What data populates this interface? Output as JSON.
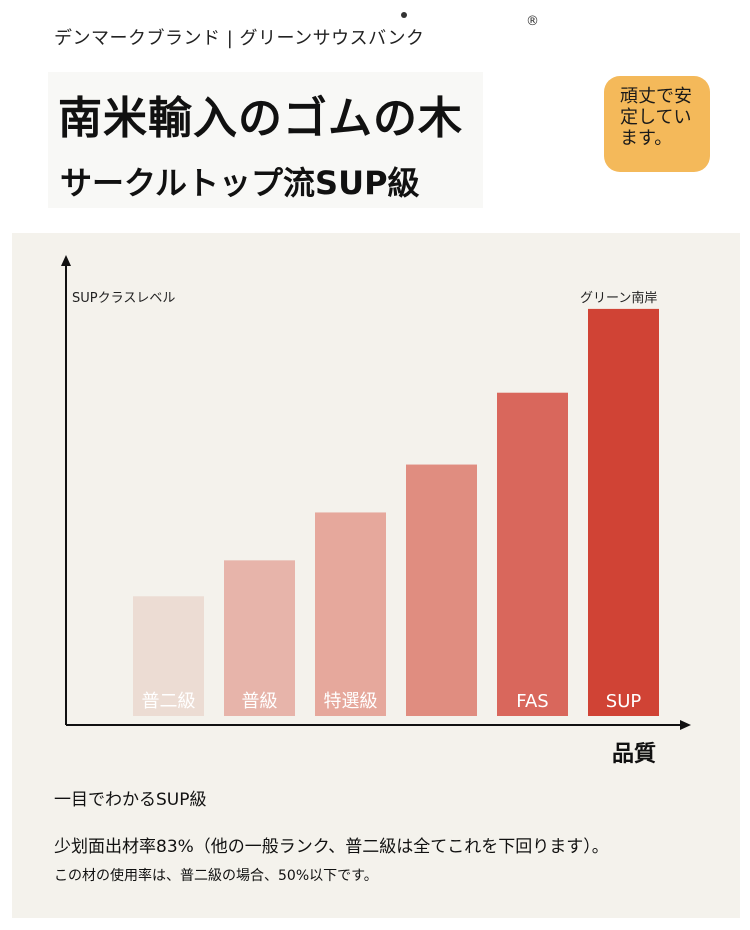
{
  "header": {
    "brand_line": "デンマークブランド | グリーンサウスバンク",
    "title_line1": "南米輸入のゴムの木",
    "title_line2": "サークルトップ流SUP級"
  },
  "badge": {
    "text": "頑丈で安定しています。",
    "color": "#f4b95a"
  },
  "chart_data": {
    "type": "bar",
    "ylabel": "SUPクラスレベル",
    "xlabel": "品質",
    "categories": [
      "普二級",
      "普級",
      "特選級",
      "",
      "FAS",
      "SUP"
    ],
    "series": [
      {
        "name": "グリーン南岸",
        "values": [
          1.0,
          1.3,
          1.7,
          2.1,
          2.7,
          3.4
        ]
      }
    ],
    "ylim": [
      0,
      3.8
    ],
    "grid": false,
    "colors": [
      "#ecdcd3",
      "#e7b4aa",
      "#e6a89c",
      "#e08d80",
      "#d9675c",
      "#d04335"
    ]
  },
  "footer": {
    "subtitle": "一目でわかるSUP級",
    "line1": "少划面出材率83%（他の一般ランク、普二級は全てこれを下回ります）。",
    "line2": "この材の使用率は、普二級の場合、50%以下です。"
  }
}
